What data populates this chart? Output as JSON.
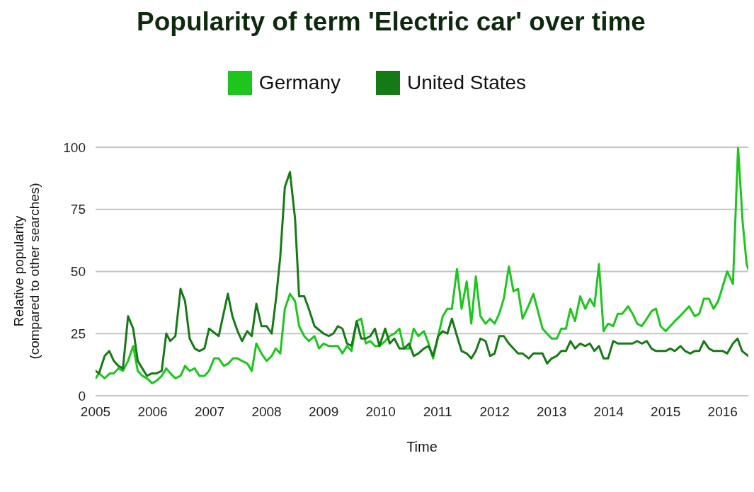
{
  "chart_data": {
    "type": "line",
    "title": "Popularity of term 'Electric car' over time",
    "xlabel": "Time",
    "ylabel": "Relative popularity\n(compared to other searches)",
    "xlim": [
      2005,
      2016.45
    ],
    "xticks": [
      2005,
      2006,
      2007,
      2008,
      2009,
      2010,
      2011,
      2012,
      2013,
      2014,
      2015,
      2016
    ],
    "ylim": [
      0,
      100
    ],
    "yticks": [
      0,
      25,
      50,
      75,
      100
    ],
    "grid": "y",
    "legend": "top",
    "marker": "none",
    "line_style": "solid",
    "series": [
      {
        "name": "Germany",
        "color": "#1ec51e",
        "x": [
          2005.0,
          2005.06,
          2005.16,
          2005.25,
          2005.32,
          2005.4,
          2005.48,
          2005.57,
          2005.66,
          2005.74,
          2005.82,
          2005.9,
          2005.99,
          2006.07,
          2006.16,
          2006.24,
          2006.31,
          2006.4,
          2006.49,
          2006.57,
          2006.65,
          2006.74,
          2006.82,
          2006.91,
          2006.99,
          2007.08,
          2007.16,
          2007.25,
          2007.33,
          2007.41,
          2007.49,
          2007.57,
          2007.66,
          2007.74,
          2007.82,
          2007.91,
          2008.0,
          2008.09,
          2008.16,
          2008.24,
          2008.32,
          2008.41,
          2008.5,
          2008.57,
          2008.66,
          2008.74,
          2008.84,
          2008.92,
          2009.0,
          2009.09,
          2009.17,
          2009.25,
          2009.33,
          2009.41,
          2009.49,
          2009.58,
          2009.66,
          2009.74,
          2009.82,
          2009.9,
          2009.98,
          2010.08,
          2010.16,
          2010.24,
          2010.33,
          2010.41,
          2010.5,
          2010.58,
          2010.66,
          2010.76,
          2010.84,
          2010.92,
          2011.01,
          2011.09,
          2011.17,
          2011.25,
          2011.34,
          2011.42,
          2011.51,
          2011.59,
          2011.67,
          2011.75,
          2011.84,
          2011.92,
          2012.0,
          2012.08,
          2012.16,
          2012.25,
          2012.33,
          2012.41,
          2012.49,
          2012.59,
          2012.68,
          2012.76,
          2012.84,
          2012.92,
          2013.0,
          2013.09,
          2013.17,
          2013.25,
          2013.33,
          2013.41,
          2013.5,
          2013.59,
          2013.67,
          2013.75,
          2013.83,
          2013.91,
          2013.99,
          2014.08,
          2014.16,
          2014.24,
          2014.34,
          2014.42,
          2014.5,
          2014.58,
          2014.67,
          2014.75,
          2014.83,
          2014.91,
          2015.0,
          2015.08,
          2015.16,
          2015.25,
          2015.33,
          2015.41,
          2015.51,
          2015.59,
          2015.67,
          2015.76,
          2015.84,
          2015.92,
          2016.0,
          2016.08,
          2016.18,
          2016.27,
          2016.35,
          2016.42,
          2016.45
        ],
        "values": [
          7,
          9,
          7,
          9,
          9,
          11,
          10,
          14,
          20,
          10,
          8,
          7,
          5,
          6,
          8,
          11,
          9,
          7,
          8,
          12,
          10,
          11,
          8,
          8,
          10,
          15,
          15,
          12,
          13,
          15,
          15,
          14,
          13,
          10,
          21,
          17,
          14,
          16,
          19,
          17,
          35,
          41,
          38,
          28,
          24,
          22,
          24,
          19,
          21,
          20,
          20,
          20,
          17,
          20,
          18,
          30,
          31,
          21,
          22,
          20,
          20,
          22,
          24,
          25,
          27,
          19,
          19,
          27,
          24,
          26,
          21,
          15,
          24,
          32,
          35,
          35,
          51,
          35,
          46,
          29,
          48,
          32,
          29,
          31,
          29,
          33,
          39,
          52,
          42,
          43,
          31,
          36,
          41,
          34,
          27,
          25,
          23,
          23,
          27,
          27,
          35,
          30,
          40,
          35,
          39,
          36,
          53,
          26,
          29,
          28,
          33,
          33,
          36,
          33,
          29,
          28,
          31,
          34,
          35,
          28,
          26,
          28,
          30,
          32,
          34,
          36,
          32,
          33,
          39,
          39,
          35,
          38,
          44,
          50,
          45,
          100,
          70,
          53,
          51
        ]
      },
      {
        "name": "United States",
        "color": "#157a15",
        "x": [
          2005.0,
          2005.06,
          2005.16,
          2005.24,
          2005.32,
          2005.4,
          2005.48,
          2005.57,
          2005.66,
          2005.74,
          2005.82,
          2005.9,
          2005.99,
          2006.07,
          2006.16,
          2006.24,
          2006.31,
          2006.4,
          2006.49,
          2006.57,
          2006.65,
          2006.74,
          2006.82,
          2006.91,
          2006.99,
          2007.16,
          2007.32,
          2007.4,
          2007.49,
          2007.57,
          2007.66,
          2007.74,
          2007.82,
          2007.91,
          2008.0,
          2008.09,
          2008.17,
          2008.24,
          2008.32,
          2008.41,
          2008.5,
          2008.57,
          2008.66,
          2008.74,
          2008.84,
          2009.0,
          2009.09,
          2009.17,
          2009.25,
          2009.33,
          2009.41,
          2009.49,
          2009.58,
          2009.66,
          2009.74,
          2009.82,
          2009.9,
          2009.98,
          2010.08,
          2010.16,
          2010.24,
          2010.33,
          2010.41,
          2010.5,
          2010.58,
          2010.66,
          2010.76,
          2010.84,
          2010.92,
          2011.01,
          2011.09,
          2011.17,
          2011.25,
          2011.34,
          2011.42,
          2011.51,
          2011.59,
          2011.67,
          2011.75,
          2011.84,
          2011.92,
          2012.0,
          2012.08,
          2012.16,
          2012.25,
          2012.33,
          2012.41,
          2012.49,
          2012.6,
          2012.68,
          2012.76,
          2012.84,
          2012.92,
          2013.0,
          2013.09,
          2013.17,
          2013.25,
          2013.33,
          2013.41,
          2013.5,
          2013.59,
          2013.67,
          2013.75,
          2013.83,
          2013.91,
          2013.99,
          2014.08,
          2014.16,
          2014.24,
          2014.34,
          2014.42,
          2014.5,
          2014.58,
          2014.67,
          2014.75,
          2014.83,
          2014.91,
          2015.0,
          2015.08,
          2015.16,
          2015.26,
          2015.34,
          2015.43,
          2015.51,
          2015.59,
          2015.67,
          2015.76,
          2015.84,
          2015.92,
          2016.0,
          2016.08,
          2016.18,
          2016.26,
          2016.34,
          2016.45
        ],
        "values": [
          10,
          9,
          16,
          18,
          14,
          12,
          11,
          32,
          27,
          14,
          11,
          8,
          9,
          9,
          10,
          25,
          22,
          24,
          43,
          38,
          23,
          19,
          18,
          19,
          27,
          24,
          41,
          32,
          26,
          22,
          26,
          24,
          37,
          28,
          28,
          25,
          40,
          56,
          84,
          90,
          71,
          40,
          40,
          35,
          28,
          25,
          24,
          25,
          28,
          27,
          21,
          20,
          30,
          23,
          23,
          24,
          27,
          20,
          27,
          21,
          23,
          19,
          19,
          21,
          16,
          17,
          19,
          20,
          16,
          24,
          26,
          25,
          31,
          24,
          18,
          17,
          15,
          18,
          23,
          22,
          16,
          17,
          24,
          24,
          21,
          19,
          17,
          17,
          15,
          17,
          17,
          17,
          13,
          15,
          16,
          18,
          18,
          22,
          19,
          21,
          20,
          21,
          18,
          20,
          15,
          15,
          22,
          21,
          21,
          21,
          21,
          22,
          21,
          22,
          19,
          18,
          18,
          18,
          19,
          18,
          20,
          18,
          17,
          18,
          18,
          22,
          19,
          18,
          18,
          18,
          17,
          21,
          23,
          18,
          16
        ]
      }
    ]
  }
}
